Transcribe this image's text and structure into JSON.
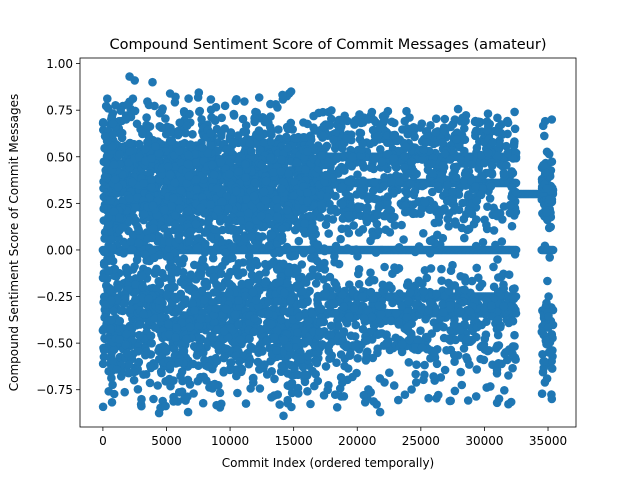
{
  "chart_data": {
    "type": "scatter",
    "title": "Compound Sentiment Score of Commit Messages (amateur)",
    "xlabel": "Commit Index (ordered temporally)",
    "ylabel": "Compound Sentiment Score of Commit Messages",
    "xlim": [
      -1800,
      37200
    ],
    "ylim": [
      -0.95,
      1.03
    ],
    "xticks": [
      0,
      5000,
      10000,
      15000,
      20000,
      25000,
      30000,
      35000
    ],
    "xtick_labels": [
      "0",
      "5000",
      "10000",
      "15000",
      "20000",
      "25000",
      "30000",
      "35000"
    ],
    "yticks": [
      -0.75,
      -0.5,
      -0.25,
      0.0,
      0.25,
      0.5,
      0.75,
      1.0
    ],
    "ytick_labels": [
      "−0.75",
      "−0.50",
      "−0.25",
      "0.00",
      "0.25",
      "0.50",
      "0.75",
      "1.00"
    ],
    "grid": false,
    "legend": false,
    "marker_color": "#1f77b4",
    "n_points_approx": 35500,
    "x_range": [
      0,
      35400
    ],
    "y_range": [
      -0.89,
      0.93
    ],
    "dense_bands": [
      {
        "y": 0.0,
        "x": [
          0,
          32500
        ],
        "note": "continuous band of neutral scores"
      },
      {
        "y": 0.0,
        "x": [
          34500,
          35400
        ]
      },
      {
        "y": 0.3,
        "x": [
          32500,
          35400
        ]
      },
      {
        "y": 0.36,
        "x": [
          17000,
          32500
        ]
      },
      {
        "y": 0.5,
        "x": [
          17000,
          32500
        ]
      },
      {
        "y": -0.34,
        "x": [
          17000,
          32500
        ]
      },
      {
        "y": -0.25,
        "x": [
          17000,
          32500
        ]
      }
    ],
    "dense_regions": [
      {
        "x": [
          0,
          17000
        ],
        "y": [
          -0.89,
          0.93
        ],
        "density": "very dense, nearly solid between -0.7 and 0.75"
      },
      {
        "x": [
          17000,
          32500
        ],
        "y": [
          -0.87,
          0.8
        ],
        "density": "moderate, concentrated on horizontal bands"
      },
      {
        "x": [
          32500,
          34500
        ],
        "y": [
          0.26,
          0.34
        ],
        "density": "single band"
      },
      {
        "x": [
          34500,
          35400
        ],
        "y": [
          -0.8,
          0.7
        ],
        "density": "sparse"
      }
    ],
    "notable_points": [
      {
        "x": 2100,
        "y": 0.93
      },
      {
        "x": 2500,
        "y": 0.91
      },
      {
        "x": 3900,
        "y": 0.9
      },
      {
        "x": 14800,
        "y": 0.85
      },
      {
        "x": 6700,
        "y": -0.87
      },
      {
        "x": 14200,
        "y": -0.89
      },
      {
        "x": 21800,
        "y": -0.87
      },
      {
        "x": 31000,
        "y": -0.82
      },
      {
        "x": 35300,
        "y": 0.7
      },
      {
        "x": 35300,
        "y": -0.8
      }
    ]
  }
}
